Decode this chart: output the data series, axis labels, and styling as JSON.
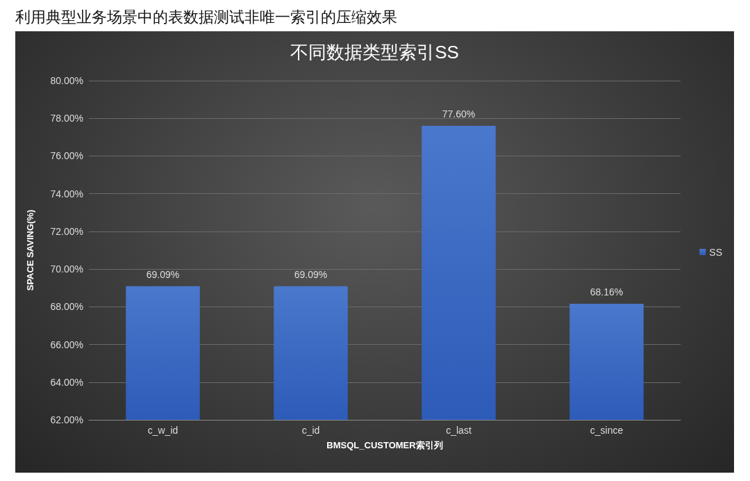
{
  "chart_data": {
    "type": "bar",
    "title": "利用典型业务场景中的表数据测试非唯一索引的压缩效果",
    "subtitle": "不同数据类型索引SS",
    "xlabel": "BMSQL_CUSTOMER索引列",
    "ylabel": "SPACE SAVING(%)",
    "categories": [
      "c_w_id",
      "c_id",
      "c_last",
      "c_since"
    ],
    "series": [
      {
        "name": "SS",
        "color": "#4a78cc",
        "values": [
          69.09,
          69.09,
          77.6,
          68.16
        ],
        "value_labels": [
          "69.09%",
          "69.09%",
          "77.60%",
          "68.16%"
        ]
      }
    ],
    "ylim": [
      62,
      80
    ],
    "yticks": [
      {
        "value": 62,
        "label": "62.00%"
      },
      {
        "value": 64,
        "label": "64.00%"
      },
      {
        "value": 66,
        "label": "66.00%"
      },
      {
        "value": 68,
        "label": "68.00%"
      },
      {
        "value": 70,
        "label": "70.00%"
      },
      {
        "value": 72,
        "label": "72.00%"
      },
      {
        "value": 74,
        "label": "74.00%"
      },
      {
        "value": 76,
        "label": "76.00%"
      },
      {
        "value": 78,
        "label": "78.00%"
      },
      {
        "value": 80,
        "label": "80.00%"
      }
    ],
    "grid": "y",
    "legend": "right"
  }
}
